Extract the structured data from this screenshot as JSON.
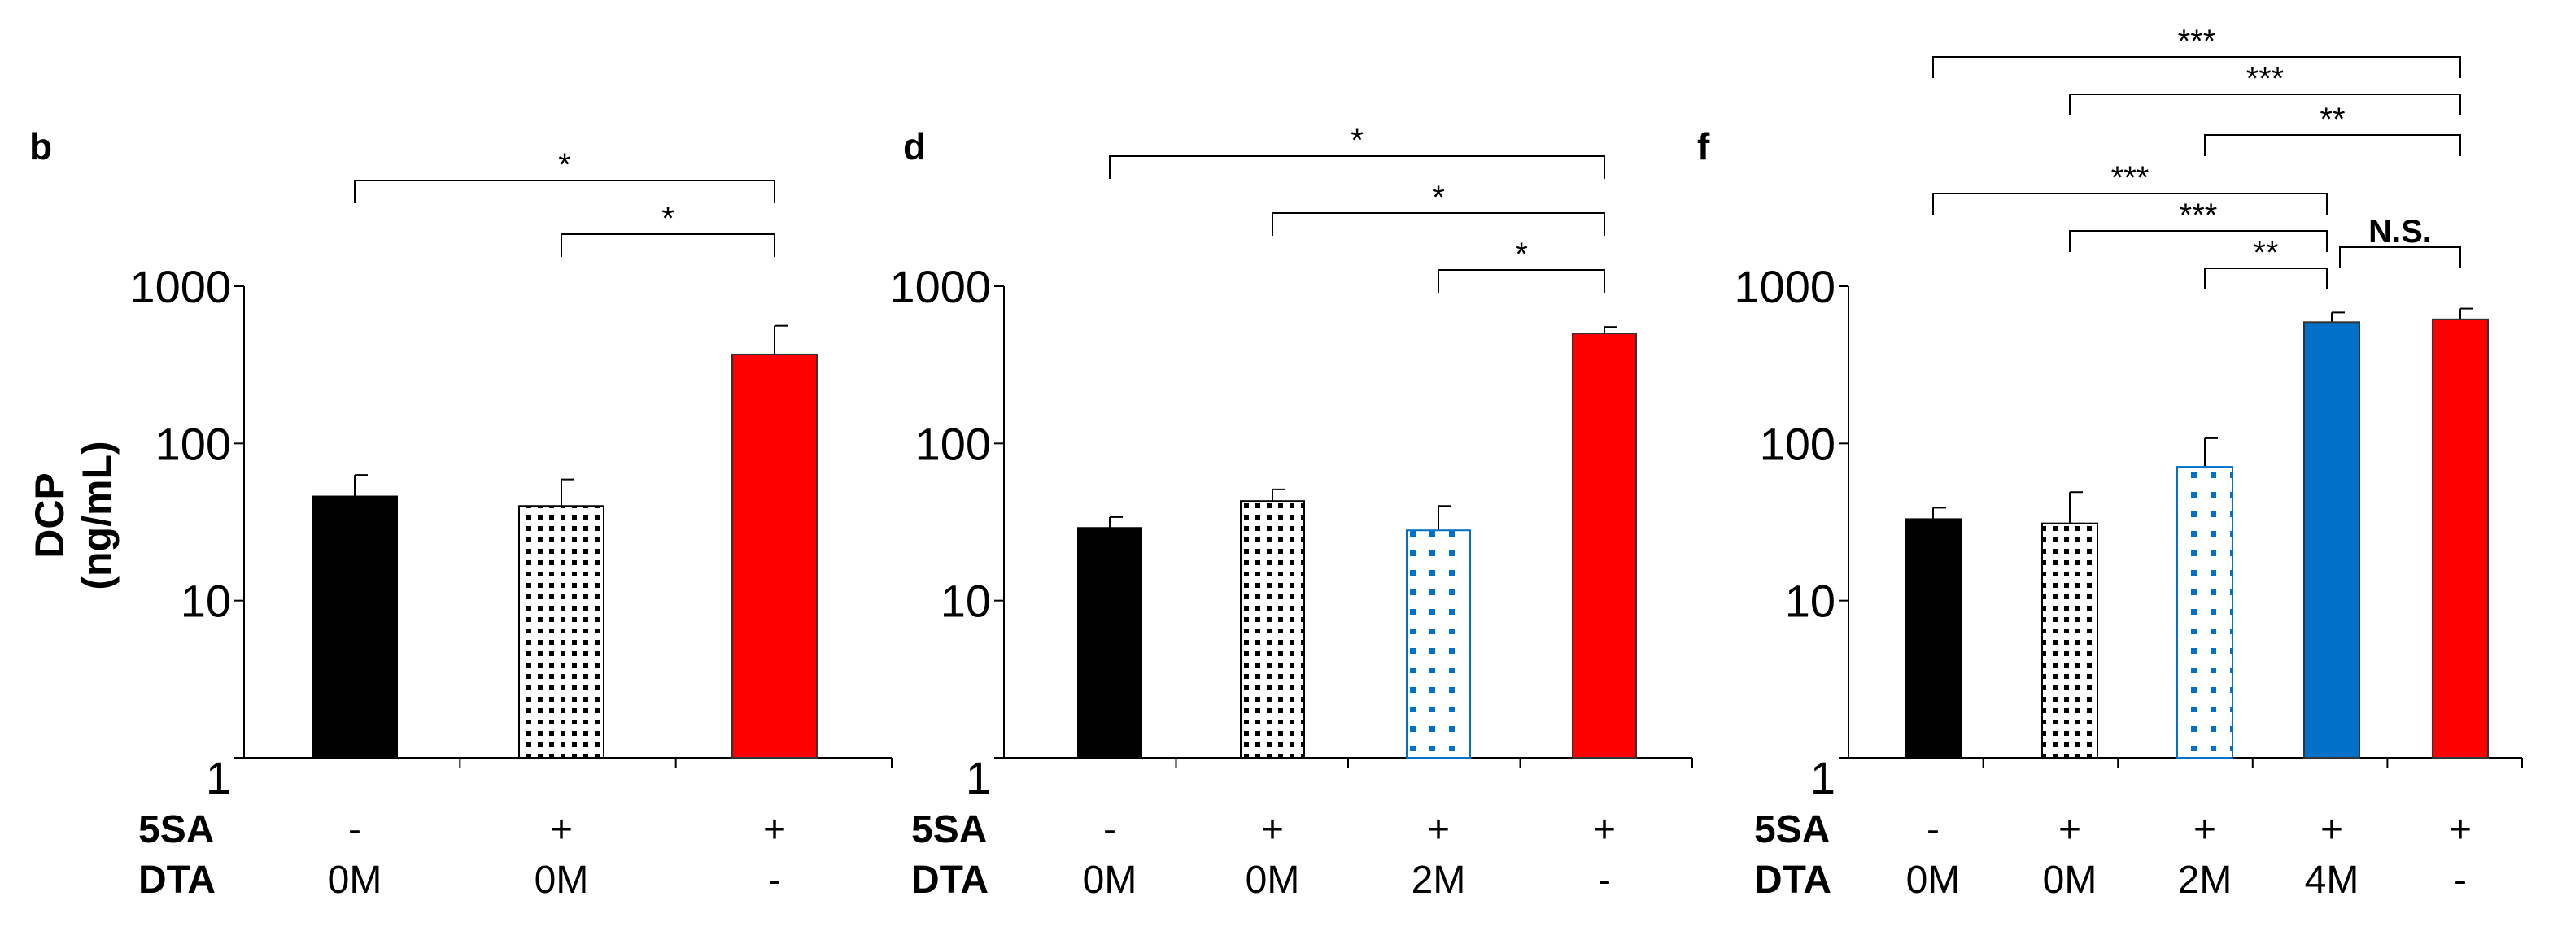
{
  "chart_data": [
    {
      "type": "bar",
      "panel_label": "b",
      "ylabel": [
        "DCP",
        "(ng/mL)"
      ],
      "yscale": "log",
      "ylim": [
        1,
        1000
      ],
      "yticks": [
        "1",
        "10",
        "100",
        "1000"
      ],
      "row_headers": [
        "5SA",
        "DTA"
      ],
      "categories": [
        {
          "5SA": "-",
          "DTA": "0M"
        },
        {
          "5SA": "+",
          "DTA": "0M"
        },
        {
          "5SA": "+",
          "DTA": "-"
        }
      ],
      "values": [
        46,
        40,
        368
      ],
      "error_upper": [
        63,
        59,
        560
      ],
      "fills": [
        "solid-black",
        "black-dots",
        "solid-red"
      ],
      "significance": [
        {
          "from": 0,
          "to": 2,
          "label": "*"
        },
        {
          "from": 1,
          "to": 2,
          "label": "*"
        }
      ]
    },
    {
      "type": "bar",
      "panel_label": "d",
      "yscale": "log",
      "ylim": [
        1,
        1000
      ],
      "yticks": [
        "1",
        "10",
        "100",
        "1000"
      ],
      "row_headers": [
        "5SA",
        "DTA"
      ],
      "categories": [
        {
          "5SA": "-",
          "DTA": "0M"
        },
        {
          "5SA": "+",
          "DTA": "0M"
        },
        {
          "5SA": "+",
          "DTA": "2M"
        },
        {
          "5SA": "+",
          "DTA": "-"
        }
      ],
      "values": [
        29,
        43,
        28,
        500
      ],
      "error_upper": [
        34,
        51,
        40,
        550
      ],
      "fills": [
        "solid-black",
        "black-dots",
        "blue-dots",
        "solid-red"
      ],
      "significance": [
        {
          "from": 0,
          "to": 3,
          "label": "*"
        },
        {
          "from": 1,
          "to": 3,
          "label": "*"
        },
        {
          "from": 2,
          "to": 3,
          "label": "*"
        }
      ]
    },
    {
      "type": "bar",
      "panel_label": "f",
      "yscale": "log",
      "ylim": [
        1,
        1000
      ],
      "yticks": [
        "1",
        "10",
        "100",
        "1000"
      ],
      "row_headers": [
        "5SA",
        "DTA"
      ],
      "categories": [
        {
          "5SA": "-",
          "DTA": "0M"
        },
        {
          "5SA": "+",
          "DTA": "0M"
        },
        {
          "5SA": "+",
          "DTA": "2M"
        },
        {
          "5SA": "+",
          "DTA": "4M"
        },
        {
          "5SA": "+",
          "DTA": "-"
        }
      ],
      "values": [
        33,
        31,
        71,
        590,
        615
      ],
      "error_upper": [
        39,
        49,
        108,
        680,
        720
      ],
      "fills": [
        "solid-black",
        "black-dots",
        "blue-dots",
        "solid-blue",
        "solid-red"
      ],
      "significance": [
        {
          "from": 0,
          "to": 4,
          "label": "***"
        },
        {
          "from": 1,
          "to": 4,
          "label": "***"
        },
        {
          "from": 2,
          "to": 4,
          "label": "**"
        },
        {
          "from": 0,
          "to": 3,
          "label": "***"
        },
        {
          "from": 1,
          "to": 3,
          "label": "***"
        },
        {
          "from": 2,
          "to": 3,
          "label": "**"
        },
        {
          "from": 3,
          "to": 4,
          "label": "N.S."
        }
      ]
    }
  ],
  "colors": {
    "red": "#ff0000",
    "blue": "#0070c8",
    "black": "#000000"
  }
}
